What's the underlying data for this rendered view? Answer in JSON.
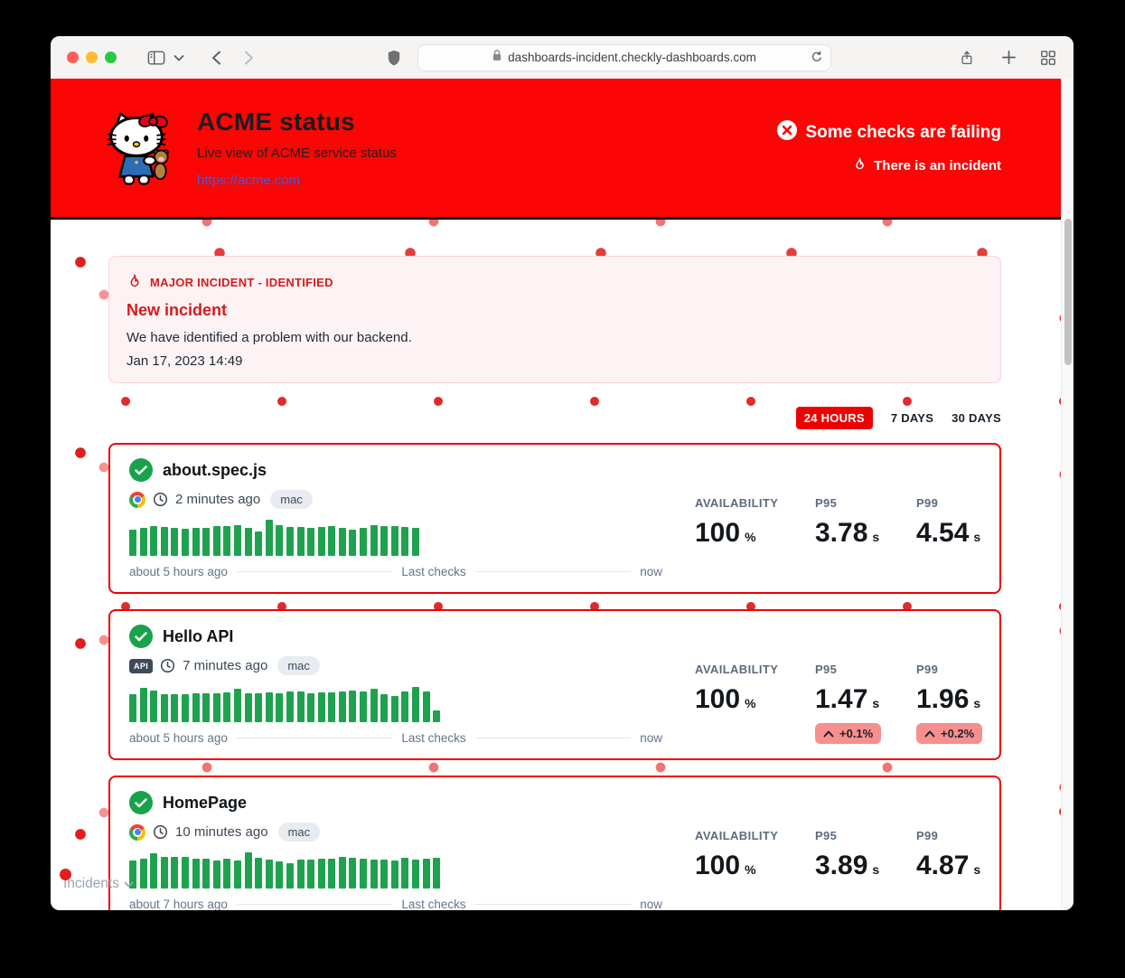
{
  "window": {
    "url": "dashboards-incident.checkly-dashboards.com"
  },
  "header": {
    "title": "ACME status",
    "subtitle": "Live view of ACME service status",
    "link": "https://acme.com",
    "status_main": "Some checks are failing",
    "status_sub": "There is an incident"
  },
  "incident_banner": {
    "tag": "MAJOR INCIDENT - IDENTIFIED",
    "title": "New incident",
    "description": "We have identified a problem with our backend.",
    "timestamp": "Jan 17, 2023 14:49"
  },
  "time_range": {
    "selected": "24 HOURS",
    "tabs": [
      "24 HOURS",
      "7 DAYS",
      "30 DAYS"
    ]
  },
  "labels": {
    "availability": "AVAILABILITY",
    "p95": "P95",
    "p99": "P99",
    "api_badge": "API",
    "incidents": "Incidents"
  },
  "checks": [
    {
      "name": "about.spec.js",
      "runner": "chrome",
      "status": "passing",
      "last_run": "2 minutes ago",
      "os": "mac",
      "availability": "100",
      "availability_unit": "%",
      "p95": "3.78",
      "p99": "4.54",
      "unit": "s",
      "timeline_start": "about 5 hours ago",
      "timeline_mid": "Last checks",
      "timeline_end": "now",
      "bars": [
        29,
        31,
        33,
        32,
        31,
        30,
        31,
        31,
        33,
        33,
        34,
        31,
        27,
        40,
        34,
        32,
        32,
        31,
        32,
        33,
        31,
        29,
        31,
        34,
        33,
        33,
        32,
        31
      ]
    },
    {
      "name": "Hello API",
      "runner": "api",
      "status": "passing",
      "last_run": "7 minutes ago",
      "os": "mac",
      "availability": "100",
      "availability_unit": "%",
      "p95": "1.47",
      "p95_delta": "+0.1%",
      "p99": "1.96",
      "p99_delta": "+0.2%",
      "unit": "s",
      "timeline_start": "about 5 hours ago",
      "timeline_mid": "Last checks",
      "timeline_end": "now",
      "bars": [
        31,
        38,
        35,
        31,
        31,
        31,
        32,
        32,
        32,
        33,
        37,
        32,
        32,
        33,
        32,
        34,
        34,
        32,
        33,
        33,
        34,
        35,
        34,
        37,
        31,
        29,
        34,
        39,
        34,
        13
      ]
    },
    {
      "name": "HomePage",
      "runner": "chrome",
      "status": "passing",
      "last_run": "10 minutes ago",
      "os": "mac",
      "availability": "100",
      "availability_unit": "%",
      "p95": "3.89",
      "p99": "4.87",
      "unit": "s",
      "timeline_start": "about 7 hours ago",
      "timeline_mid": "Last checks",
      "timeline_end": "now",
      "bars": [
        31,
        33,
        39,
        35,
        35,
        35,
        33,
        33,
        31,
        33,
        31,
        40,
        34,
        32,
        30,
        28,
        32,
        32,
        33,
        33,
        35,
        34,
        33,
        32,
        32,
        31,
        34,
        32,
        33,
        34
      ]
    }
  ],
  "icons": {
    "status_main": "x-circle-icon",
    "status_sub": "flame-icon",
    "check_ok": "check-circle-icon",
    "browser_runner": "chrome-icon",
    "api_runner": "api-badge",
    "last_run": "clock-icon"
  },
  "colors": {
    "header_background": "#fb0505",
    "tab_active_background": "#ee0000",
    "card_border": "#f20000",
    "bar_green": "#1fa24e",
    "check_green": "#18a34b",
    "banner_background": "#fdf2f4",
    "banner_border": "#f7d4da",
    "incident_red": "#d31c1c",
    "delta_badge_background": "#f78f8f",
    "link_blue": "#3b5fe0"
  }
}
